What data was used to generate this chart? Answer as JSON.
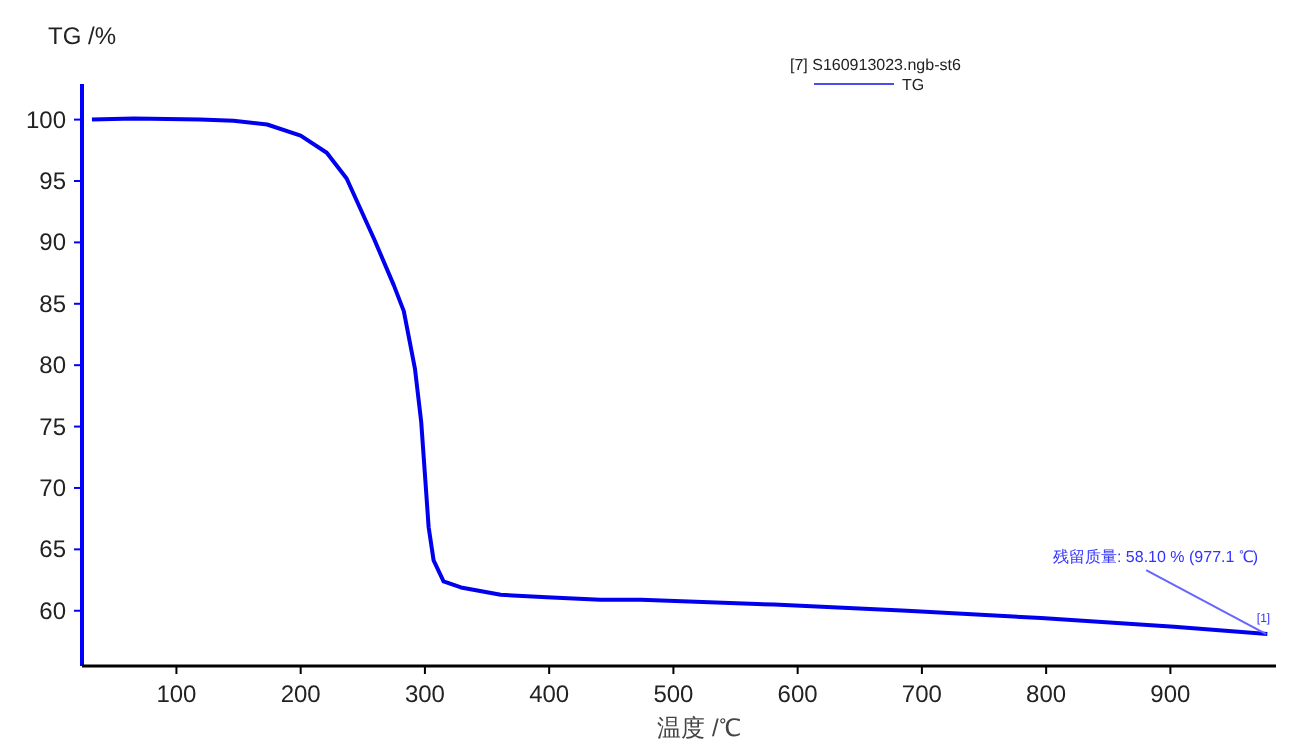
{
  "chart_data": {
    "type": "line",
    "ylabel": "TG /%",
    "xlabel": "温度 /℃",
    "legend_title": "[7] S160913023.ngb-st6",
    "legend": "top right",
    "grid": false,
    "marker": "none",
    "line_style": "solid",
    "xlim": [
      24,
      985
    ],
    "ylim": [
      55.5,
      102.9
    ],
    "xticks": [
      100,
      200,
      300,
      400,
      500,
      600,
      700,
      800,
      900
    ],
    "yticks": [
      60,
      65,
      70,
      75,
      80,
      85,
      90,
      95,
      100
    ],
    "series": [
      {
        "name": "TG",
        "color": "#0000ee",
        "x": [
          32,
          66,
          119,
          146,
          173,
          200,
          221,
          237,
          259,
          275,
          283,
          288,
          292,
          297,
          300,
          303,
          307,
          315,
          329,
          361,
          398,
          441,
          474,
          581,
          688,
          796,
          903,
          978
        ],
        "values": [
          100.0,
          100.1,
          100.0,
          99.9,
          99.6,
          98.7,
          97.3,
          95.2,
          90.3,
          86.5,
          84.4,
          81.8,
          79.7,
          75.4,
          71.1,
          66.8,
          64.1,
          62.4,
          61.9,
          61.3,
          61.1,
          60.9,
          60.9,
          60.5,
          60.0,
          59.4,
          58.7,
          58.1
        ]
      }
    ],
    "annotations": [
      {
        "text": "残留质量: 58.10 % (977.1 ℃)",
        "x": 977.1,
        "y": 58.1
      },
      {
        "text": "[1]",
        "x": 977.1,
        "y": 58.1
      }
    ]
  }
}
